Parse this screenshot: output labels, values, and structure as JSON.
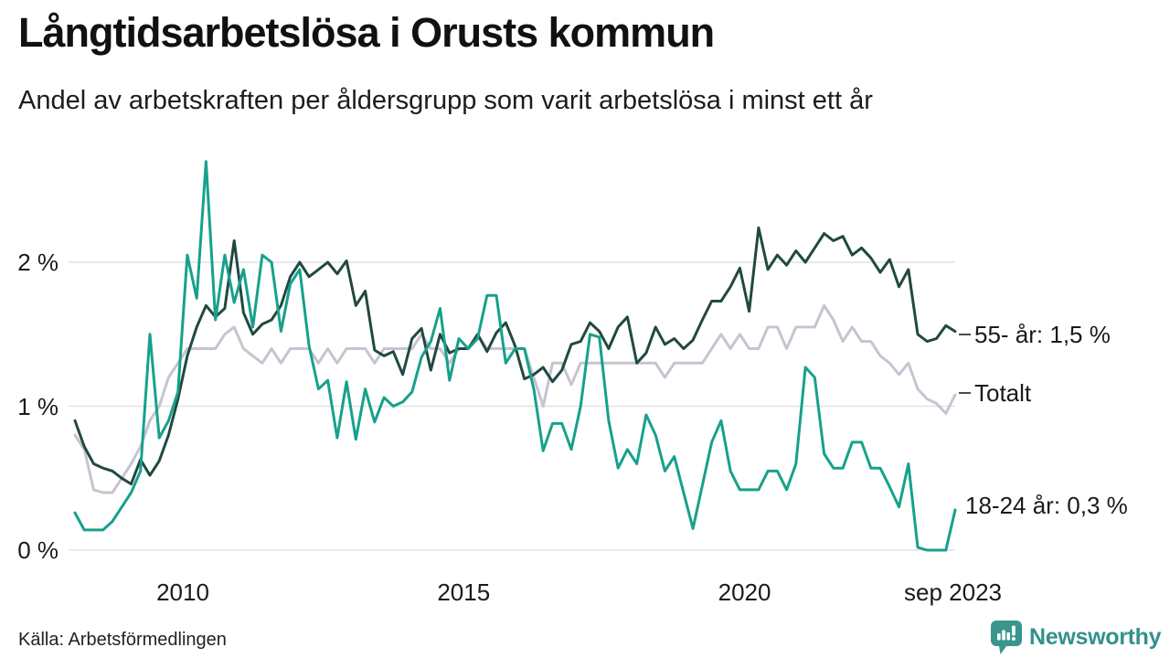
{
  "header": {
    "title": "Långtidsarbetslösa i Orusts kommun",
    "subtitle": "Andel av arbetskraften per åldersgrupp som varit arbetslösa i minst ett år"
  },
  "footer": {
    "source": "Källa: Arbetsförmedlingen",
    "brand": "Newsworthy"
  },
  "chart_data": {
    "type": "line",
    "title": "Långtidsarbetslösa i Orusts kommun",
    "subtitle": "Andel av arbetskraften per åldersgrupp som varit arbetslösa i minst ett år",
    "source": "Källa: Arbetsförmedlingen",
    "x_start": 2008.08,
    "x_end": 2023.75,
    "x_resolution_months": 2,
    "ylim": [
      0,
      2.8
    ],
    "grid": true,
    "background": "#ffffff",
    "grid_color": "#e4e2e7",
    "yticks": [
      {
        "value": 0,
        "label": "0 %"
      },
      {
        "value": 1,
        "label": "1 %"
      },
      {
        "value": 2,
        "label": "2 %"
      }
    ],
    "xticks": [
      {
        "value": 2010,
        "label": "2010"
      },
      {
        "value": 2015,
        "label": "2015"
      },
      {
        "value": 2020,
        "label": "2020"
      },
      {
        "value": 2023.71,
        "label": "sep 2023"
      }
    ],
    "annotations": [
      {
        "label": "55- år: 1,5 %",
        "y_value": 1.5,
        "dash": true
      },
      {
        "label": "Totalt",
        "y_value": 1.09,
        "dash": true
      },
      {
        "label": "18-24 år: 0,3 %",
        "y_value": 0.31,
        "dash": false
      }
    ],
    "series": [
      {
        "id": "totalt",
        "name": "Totalt",
        "color": "#c7c3d0",
        "end_value": "1,1 %",
        "values": [
          0.8,
          0.7,
          0.42,
          0.4,
          0.4,
          0.5,
          0.6,
          0.72,
          0.9,
          1.0,
          1.2,
          1.3,
          1.4,
          1.4,
          1.4,
          1.4,
          1.5,
          1.55,
          1.4,
          1.35,
          1.3,
          1.4,
          1.3,
          1.4,
          1.4,
          1.4,
          1.3,
          1.4,
          1.3,
          1.4,
          1.4,
          1.4,
          1.3,
          1.4,
          1.4,
          1.4,
          1.4,
          1.5,
          1.4,
          1.4,
          1.3,
          1.4,
          1.4,
          1.5,
          1.4,
          1.4,
          1.4,
          1.4,
          1.4,
          1.2,
          1.0,
          1.3,
          1.3,
          1.15,
          1.3,
          1.3,
          1.3,
          1.3,
          1.3,
          1.3,
          1.3,
          1.3,
          1.3,
          1.2,
          1.3,
          1.3,
          1.3,
          1.3,
          1.4,
          1.5,
          1.4,
          1.5,
          1.4,
          1.4,
          1.55,
          1.55,
          1.4,
          1.55,
          1.55,
          1.55,
          1.7,
          1.6,
          1.45,
          1.55,
          1.45,
          1.45,
          1.35,
          1.3,
          1.22,
          1.3,
          1.12,
          1.05,
          1.02,
          0.95,
          1.08
        ]
      },
      {
        "id": "55-ar",
        "name": "55- år",
        "color": "#21493f",
        "end_value": "1,5 %",
        "values": [
          0.9,
          0.72,
          0.6,
          0.57,
          0.55,
          0.5,
          0.46,
          0.63,
          0.52,
          0.62,
          0.8,
          1.05,
          1.35,
          1.55,
          1.7,
          1.62,
          1.68,
          2.15,
          1.65,
          1.5,
          1.57,
          1.6,
          1.7,
          1.9,
          2.0,
          1.9,
          1.95,
          2.0,
          1.92,
          2.01,
          1.7,
          1.8,
          1.39,
          1.35,
          1.38,
          1.22,
          1.47,
          1.54,
          1.25,
          1.5,
          1.37,
          1.4,
          1.4,
          1.5,
          1.38,
          1.51,
          1.58,
          1.42,
          1.19,
          1.22,
          1.27,
          1.17,
          1.25,
          1.43,
          1.45,
          1.58,
          1.52,
          1.4,
          1.55,
          1.62,
          1.3,
          1.37,
          1.55,
          1.43,
          1.47,
          1.4,
          1.46,
          1.6,
          1.73,
          1.73,
          1.83,
          1.96,
          1.66,
          2.24,
          1.95,
          2.05,
          1.98,
          2.08,
          2.0,
          2.1,
          2.2,
          2.15,
          2.18,
          2.05,
          2.1,
          2.03,
          1.93,
          2.02,
          1.83,
          1.95,
          1.5,
          1.45,
          1.47,
          1.56,
          1.52
        ]
      },
      {
        "id": "18-24-ar",
        "name": "18-24 år",
        "color": "#16a18c",
        "end_value": "0,3 %",
        "values": [
          0.26,
          0.14,
          0.14,
          0.14,
          0.2,
          0.3,
          0.4,
          0.55,
          1.5,
          0.78,
          0.9,
          1.1,
          2.05,
          1.75,
          2.7,
          1.6,
          2.05,
          1.72,
          1.95,
          1.55,
          2.05,
          2.0,
          1.52,
          1.85,
          1.95,
          1.42,
          1.12,
          1.18,
          0.78,
          1.17,
          0.77,
          1.12,
          0.89,
          1.06,
          1.0,
          1.03,
          1.1,
          1.34,
          1.45,
          1.68,
          1.18,
          1.47,
          1.4,
          1.47,
          1.77,
          1.77,
          1.3,
          1.4,
          1.4,
          1.12,
          0.69,
          0.88,
          0.88,
          0.7,
          1.0,
          1.5,
          1.48,
          0.9,
          0.57,
          0.7,
          0.6,
          0.94,
          0.8,
          0.55,
          0.65,
          0.4,
          0.15,
          0.45,
          0.75,
          0.9,
          0.55,
          0.42,
          0.42,
          0.42,
          0.55,
          0.55,
          0.42,
          0.6,
          1.27,
          1.2,
          0.67,
          0.57,
          0.57,
          0.75,
          0.75,
          0.57,
          0.57,
          0.44,
          0.3,
          0.6,
          0.02,
          0.0,
          0.0,
          0.0,
          0.28
        ]
      }
    ]
  }
}
